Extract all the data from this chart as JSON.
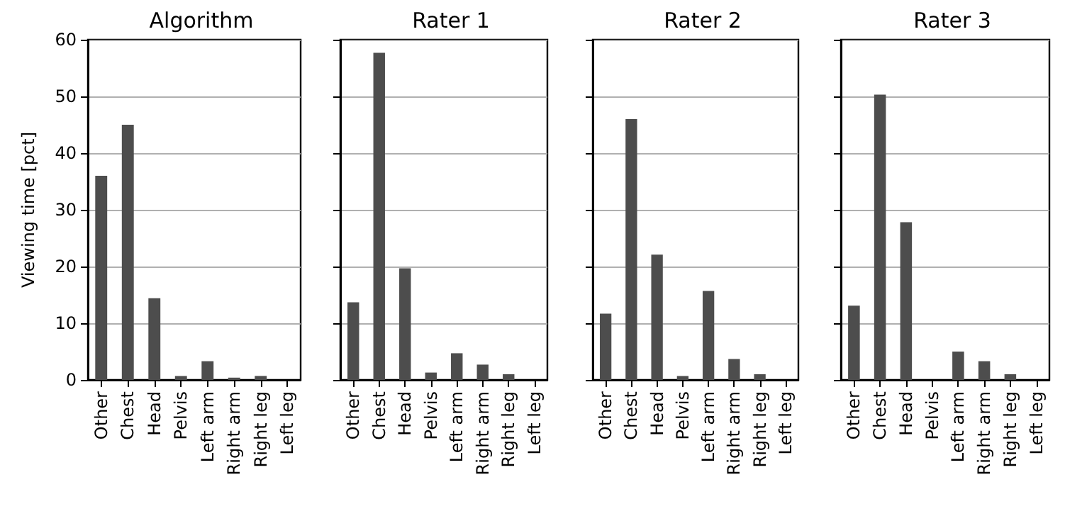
{
  "chart_data": [
    {
      "type": "bar",
      "title": "Algorithm",
      "ylabel": "Viewing time [pct]",
      "categories": [
        "Other",
        "Chest",
        "Head",
        "Pelvis",
        "Left arm",
        "Right arm",
        "Right leg",
        "Left leg"
      ],
      "values": [
        36.0,
        45.0,
        14.4,
        0.7,
        3.3,
        0.4,
        0.7,
        0
      ],
      "color": "#4d4d4d",
      "ylim": [
        0,
        60
      ],
      "yticks": [
        0,
        10,
        20,
        30,
        40,
        50,
        60
      ],
      "grid": "y"
    },
    {
      "type": "bar",
      "title": "Rater 1",
      "categories": [
        "Other",
        "Chest",
        "Head",
        "Pelvis",
        "Left arm",
        "Right arm",
        "Right leg",
        "Left leg"
      ],
      "values": [
        13.7,
        57.7,
        19.7,
        1.3,
        4.7,
        2.7,
        1.0,
        0
      ],
      "color": "#4d4d4d",
      "ylim": [
        0,
        60
      ],
      "yticks": [
        0,
        10,
        20,
        30,
        40,
        50,
        60
      ],
      "grid": "y",
      "tick_labels": "x"
    },
    {
      "type": "bar",
      "title": "Rater 2",
      "categories": [
        "Other",
        "Chest",
        "Head",
        "Pelvis",
        "Left arm",
        "Right arm",
        "Right leg",
        "Left leg"
      ],
      "values": [
        11.7,
        46.0,
        22.1,
        0.7,
        15.7,
        3.7,
        1.0,
        0
      ],
      "color": "#4d4d4d",
      "ylim": [
        0,
        60
      ],
      "yticks": [
        0,
        10,
        20,
        30,
        40,
        50,
        60
      ],
      "grid": "y",
      "tick_labels": "x"
    },
    {
      "type": "bar",
      "title": "Rater 3",
      "categories": [
        "Other",
        "Chest",
        "Head",
        "Pelvis",
        "Left arm",
        "Right arm",
        "Right leg",
        "Left leg"
      ],
      "values": [
        13.1,
        50.3,
        27.8,
        0,
        5.0,
        3.3,
        1.0,
        0
      ],
      "color": "#4d4d4d",
      "ylim": [
        0,
        60
      ],
      "yticks": [
        0,
        10,
        20,
        30,
        40,
        50,
        60
      ],
      "grid": "y",
      "tick_labels": "x"
    }
  ]
}
